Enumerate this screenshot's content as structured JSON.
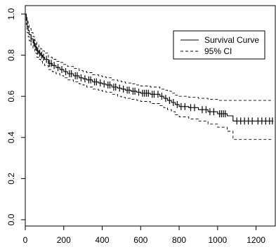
{
  "chart_data": {
    "type": "line",
    "title": "",
    "xlabel": "",
    "ylabel": "",
    "xlim": [
      0,
      1300
    ],
    "ylim": [
      0,
      1
    ],
    "x_ticks": [
      0,
      200,
      400,
      600,
      800,
      1000,
      1200
    ],
    "x_tick_labels": [
      "0",
      "200",
      "400",
      "600",
      "800",
      "1000",
      "1200"
    ],
    "y_ticks": [
      0.0,
      0.2,
      0.4,
      0.6,
      0.8,
      1.0
    ],
    "y_tick_labels": [
      "0.0",
      "0.2",
      "0.4",
      "0.6",
      "0.8",
      "1.0"
    ],
    "grid": false,
    "legend": {
      "position": "top-right",
      "entries": [
        {
          "label": "Survival Curve",
          "style": "solid"
        },
        {
          "label": "95% CI",
          "style": "dashed"
        }
      ]
    },
    "series": [
      {
        "name": "Survival Curve",
        "style": "solid",
        "step": true,
        "x": [
          0,
          5,
          10,
          15,
          20,
          30,
          40,
          50,
          60,
          70,
          80,
          90,
          100,
          120,
          140,
          160,
          180,
          200,
          220,
          250,
          280,
          300,
          320,
          350,
          380,
          400,
          420,
          450,
          480,
          500,
          520,
          550,
          580,
          600,
          650,
          700,
          720,
          740,
          760,
          780,
          800,
          850,
          900,
          950,
          1000,
          1050,
          1080,
          1200,
          1290
        ],
        "y": [
          1.0,
          0.97,
          0.94,
          0.92,
          0.9,
          0.88,
          0.86,
          0.84,
          0.82,
          0.81,
          0.8,
          0.79,
          0.78,
          0.76,
          0.75,
          0.74,
          0.73,
          0.72,
          0.71,
          0.7,
          0.69,
          0.685,
          0.68,
          0.67,
          0.665,
          0.66,
          0.655,
          0.645,
          0.64,
          0.635,
          0.63,
          0.625,
          0.62,
          0.615,
          0.61,
          0.6,
          0.59,
          0.58,
          0.57,
          0.56,
          0.55,
          0.545,
          0.535,
          0.525,
          0.515,
          0.505,
          0.48,
          0.48,
          0.48
        ]
      },
      {
        "name": "95% CI",
        "style": "dashed",
        "step": true,
        "x": [
          0,
          5,
          10,
          15,
          20,
          30,
          40,
          50,
          60,
          70,
          80,
          90,
          100,
          120,
          140,
          160,
          180,
          200,
          220,
          250,
          280,
          300,
          320,
          350,
          380,
          400,
          420,
          450,
          480,
          500,
          520,
          550,
          580,
          600,
          650,
          700,
          720,
          740,
          760,
          780,
          800,
          850,
          900,
          950,
          1000,
          1050,
          1080,
          1200,
          1290
        ],
        "y": [
          1.0,
          0.99,
          0.97,
          0.95,
          0.93,
          0.91,
          0.89,
          0.87,
          0.85,
          0.84,
          0.83,
          0.82,
          0.81,
          0.79,
          0.78,
          0.77,
          0.765,
          0.755,
          0.745,
          0.735,
          0.725,
          0.72,
          0.715,
          0.705,
          0.7,
          0.695,
          0.69,
          0.68,
          0.675,
          0.67,
          0.665,
          0.66,
          0.655,
          0.65,
          0.645,
          0.635,
          0.63,
          0.625,
          0.615,
          0.605,
          0.6,
          0.595,
          0.59,
          0.585,
          0.58,
          0.58,
          0.58,
          0.58,
          0.58
        ]
      },
      {
        "name": "95% CI",
        "style": "dashed",
        "step": true,
        "x": [
          0,
          5,
          10,
          15,
          20,
          30,
          40,
          50,
          60,
          70,
          80,
          90,
          100,
          120,
          140,
          160,
          180,
          200,
          220,
          250,
          280,
          300,
          320,
          350,
          380,
          400,
          420,
          450,
          480,
          500,
          520,
          550,
          580,
          600,
          650,
          700,
          720,
          740,
          760,
          780,
          800,
          850,
          900,
          950,
          1000,
          1050,
          1080,
          1200,
          1290
        ],
        "y": [
          1.0,
          0.95,
          0.91,
          0.89,
          0.87,
          0.85,
          0.83,
          0.81,
          0.79,
          0.78,
          0.77,
          0.76,
          0.75,
          0.73,
          0.72,
          0.71,
          0.7,
          0.69,
          0.68,
          0.67,
          0.66,
          0.655,
          0.645,
          0.635,
          0.63,
          0.625,
          0.62,
          0.61,
          0.6,
          0.595,
          0.59,
          0.585,
          0.58,
          0.575,
          0.565,
          0.555,
          0.545,
          0.535,
          0.525,
          0.51,
          0.5,
          0.49,
          0.48,
          0.465,
          0.45,
          0.43,
          0.39,
          0.39,
          0.39
        ]
      }
    ],
    "censor_marks": {
      "series": "Survival Curve",
      "x": [
        30,
        45,
        55,
        65,
        75,
        85,
        95,
        110,
        125,
        135,
        150,
        170,
        190,
        210,
        230,
        240,
        260,
        270,
        290,
        310,
        330,
        340,
        360,
        370,
        390,
        410,
        430,
        440,
        460,
        470,
        490,
        510,
        530,
        540,
        560,
        570,
        590,
        610,
        620,
        630,
        640,
        660,
        670,
        690,
        710,
        730,
        750,
        770,
        790,
        810,
        830,
        860,
        880,
        920,
        940,
        960,
        980,
        1010,
        1020,
        1030,
        1040,
        1100,
        1120,
        1140,
        1160,
        1180,
        1210,
        1230,
        1250,
        1270,
        1285
      ]
    }
  }
}
